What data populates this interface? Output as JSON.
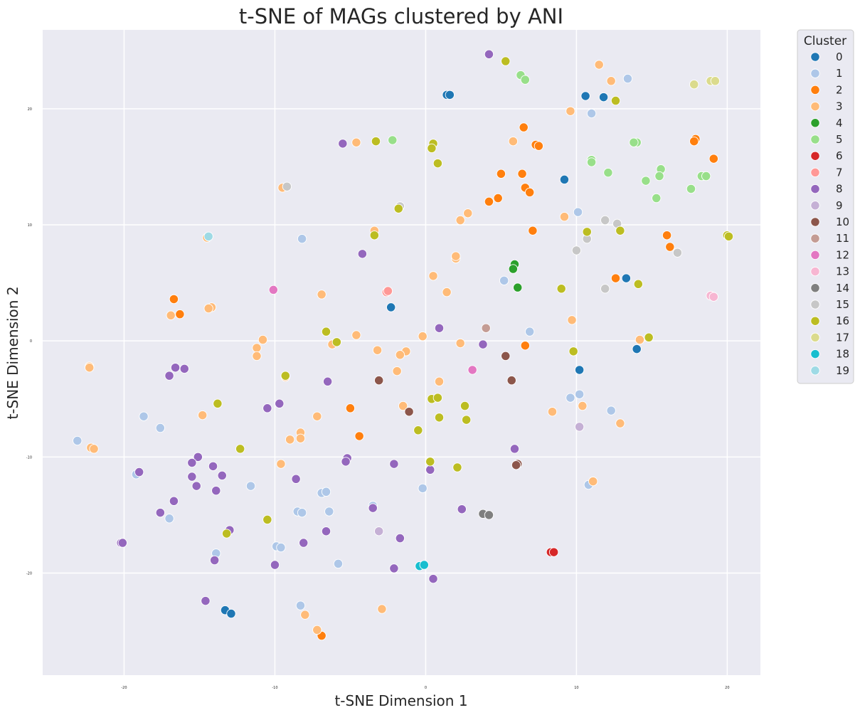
{
  "chart_data": {
    "type": "scatter",
    "title": "t-SNE of MAGs clustered by ANI",
    "xlabel": "t-SNE Dimension 1",
    "ylabel": "t-SNE Dimension 2",
    "xlim": [
      -25.4,
      22.2
    ],
    "ylim": [
      -28.8,
      26.8
    ],
    "xticks": [
      -20,
      -10,
      0,
      10,
      20
    ],
    "yticks": [
      -20,
      -10,
      0,
      10,
      20
    ],
    "grid": true,
    "legend_title": "Cluster",
    "legend_position": "outside-right",
    "series": [
      {
        "name": "0",
        "color": "#1f77b4",
        "points": [
          [
            1.4,
            21.2
          ],
          [
            1.6,
            21.2
          ],
          [
            10.6,
            21.1
          ],
          [
            11.8,
            21.0
          ],
          [
            9.2,
            13.9
          ],
          [
            13.3,
            5.4
          ],
          [
            14.0,
            -0.7
          ],
          [
            10.2,
            -2.5
          ],
          [
            -13.3,
            -23.2
          ],
          [
            -12.9,
            -23.5
          ],
          [
            -2.3,
            2.9
          ]
        ]
      },
      {
        "name": "1",
        "color": "#aec7e8",
        "points": [
          [
            13.4,
            22.6
          ],
          [
            11.0,
            19.6
          ],
          [
            10.1,
            11.1
          ],
          [
            -8.2,
            8.8
          ],
          [
            5.2,
            5.2
          ],
          [
            6.9,
            0.8
          ],
          [
            10.2,
            -4.6
          ],
          [
            9.6,
            -4.9
          ],
          [
            12.3,
            -6.0
          ],
          [
            -18.7,
            -6.5
          ],
          [
            -17.6,
            -7.5
          ],
          [
            -23.1,
            -8.6
          ],
          [
            -19.2,
            -11.5
          ],
          [
            -11.6,
            -12.5
          ],
          [
            -0.2,
            -12.7
          ],
          [
            10.8,
            -12.4
          ],
          [
            -6.9,
            -13.1
          ],
          [
            -6.6,
            -13.0
          ],
          [
            -8.5,
            -14.7
          ],
          [
            -8.2,
            -14.8
          ],
          [
            -6.4,
            -14.7
          ],
          [
            -3.5,
            -14.2
          ],
          [
            -17.0,
            -15.3
          ],
          [
            -9.9,
            -17.7
          ],
          [
            -9.6,
            -17.8
          ],
          [
            -13.9,
            -18.3
          ],
          [
            -5.8,
            -19.2
          ],
          [
            -8.3,
            -22.8
          ]
        ]
      },
      {
        "name": "2",
        "color": "#ff7f0e",
        "points": [
          [
            6.5,
            18.4
          ],
          [
            17.9,
            17.4
          ],
          [
            17.8,
            17.2
          ],
          [
            7.3,
            16.9
          ],
          [
            7.5,
            16.8
          ],
          [
            19.1,
            15.7
          ],
          [
            5.0,
            14.4
          ],
          [
            6.4,
            14.4
          ],
          [
            4.8,
            12.3
          ],
          [
            4.2,
            12.0
          ],
          [
            6.6,
            13.2
          ],
          [
            6.9,
            12.8
          ],
          [
            7.1,
            9.5
          ],
          [
            16.0,
            9.1
          ],
          [
            16.2,
            8.1
          ],
          [
            -16.7,
            3.6
          ],
          [
            -16.3,
            2.3
          ],
          [
            12.6,
            5.4
          ],
          [
            6.6,
            -0.4
          ],
          [
            -5.0,
            -5.8
          ],
          [
            -4.4,
            -8.2
          ],
          [
            -6.9,
            -25.4
          ]
        ]
      },
      {
        "name": "3",
        "color": "#ffbb78",
        "points": [
          [
            11.5,
            23.8
          ],
          [
            12.3,
            22.4
          ],
          [
            9.6,
            19.8
          ],
          [
            5.8,
            17.2
          ],
          [
            -4.6,
            17.1
          ],
          [
            2.8,
            11.0
          ],
          [
            2.3,
            10.4
          ],
          [
            9.2,
            10.7
          ],
          [
            -9.5,
            13.2
          ],
          [
            -3.4,
            9.5
          ],
          [
            -14.5,
            8.9
          ],
          [
            2.0,
            7.1
          ],
          [
            2.0,
            7.3
          ],
          [
            0.5,
            5.6
          ],
          [
            -14.2,
            2.9
          ],
          [
            -14.4,
            2.8
          ],
          [
            -16.9,
            2.2
          ],
          [
            1.4,
            4.2
          ],
          [
            -6.9,
            4.0
          ],
          [
            -2.5,
            4.3
          ],
          [
            9.7,
            1.8
          ],
          [
            14.2,
            0.1
          ],
          [
            -10.8,
            0.1
          ],
          [
            -4.6,
            0.5
          ],
          [
            -0.2,
            0.4
          ],
          [
            -6.2,
            -0.3
          ],
          [
            -11.2,
            -0.6
          ],
          [
            -11.2,
            -1.3
          ],
          [
            -3.2,
            -0.8
          ],
          [
            -1.3,
            -0.9
          ],
          [
            -1.7,
            -1.2
          ],
          [
            2.3,
            -0.2
          ],
          [
            -22.3,
            -2.2
          ],
          [
            -22.3,
            -2.3
          ],
          [
            -9.3,
            -3.1
          ],
          [
            -1.9,
            -2.6
          ],
          [
            0.9,
            -3.5
          ],
          [
            -1.5,
            -5.6
          ],
          [
            10.4,
            -5.6
          ],
          [
            8.4,
            -6.1
          ],
          [
            -14.8,
            -6.4
          ],
          [
            -7.2,
            -6.5
          ],
          [
            -8.3,
            -7.9
          ],
          [
            -8.3,
            -8.4
          ],
          [
            -9.0,
            -8.5
          ],
          [
            12.9,
            -7.1
          ],
          [
            -22.2,
            -9.2
          ],
          [
            -22.0,
            -9.3
          ],
          [
            -9.6,
            -10.6
          ],
          [
            11.1,
            -12.1
          ],
          [
            -2.9,
            -23.1
          ],
          [
            -8.0,
            -23.6
          ],
          [
            -7.2,
            -24.9
          ]
        ]
      },
      {
        "name": "4",
        "color": "#2ca02c",
        "points": [
          [
            5.9,
            6.6
          ],
          [
            5.8,
            6.2
          ],
          [
            6.1,
            4.6
          ]
        ]
      },
      {
        "name": "5",
        "color": "#98df8a",
        "points": [
          [
            6.3,
            22.9
          ],
          [
            6.6,
            22.5
          ],
          [
            -2.2,
            17.3
          ],
          [
            14.0,
            17.1
          ],
          [
            13.8,
            17.1
          ],
          [
            11.0,
            15.6
          ],
          [
            11.0,
            15.4
          ],
          [
            15.6,
            14.8
          ],
          [
            12.1,
            14.5
          ],
          [
            15.5,
            14.2
          ],
          [
            18.3,
            14.2
          ],
          [
            18.6,
            14.2
          ],
          [
            14.6,
            13.8
          ],
          [
            17.6,
            13.1
          ],
          [
            15.3,
            12.3
          ]
        ]
      },
      {
        "name": "6",
        "color": "#d62728",
        "points": [
          [
            8.3,
            -18.2
          ],
          [
            8.5,
            -18.2
          ]
        ]
      },
      {
        "name": "7",
        "color": "#ff9896",
        "points": [
          [
            -2.6,
            4.2
          ],
          [
            -2.5,
            4.3
          ]
        ]
      },
      {
        "name": "8",
        "color": "#9467bd",
        "points": [
          [
            4.2,
            24.7
          ],
          [
            -5.5,
            17.0
          ],
          [
            -4.2,
            7.5
          ],
          [
            0.9,
            1.1
          ],
          [
            -16.6,
            -2.3
          ],
          [
            -17.0,
            -3.0
          ],
          [
            -16.0,
            -2.4
          ],
          [
            -6.5,
            -3.5
          ],
          [
            3.8,
            -0.3
          ],
          [
            -10.5,
            -5.8
          ],
          [
            -9.7,
            -5.4
          ],
          [
            -15.1,
            -10.0
          ],
          [
            -15.5,
            -10.5
          ],
          [
            -14.1,
            -10.8
          ],
          [
            -5.2,
            -10.1
          ],
          [
            -5.3,
            -10.4
          ],
          [
            -2.1,
            -10.6
          ],
          [
            -19.0,
            -11.3
          ],
          [
            -15.5,
            -11.7
          ],
          [
            -13.5,
            -11.6
          ],
          [
            -8.6,
            -11.9
          ],
          [
            -15.2,
            -12.5
          ],
          [
            -13.9,
            -12.9
          ],
          [
            -16.7,
            -13.8
          ],
          [
            5.9,
            -9.3
          ],
          [
            0.3,
            -11.1
          ],
          [
            2.4,
            -14.5
          ],
          [
            -3.5,
            -14.4
          ],
          [
            -17.6,
            -14.8
          ],
          [
            -13.0,
            -16.3
          ],
          [
            -6.6,
            -16.4
          ],
          [
            -1.7,
            -17.0
          ],
          [
            -8.1,
            -17.4
          ],
          [
            -20.2,
            -17.4
          ],
          [
            -20.1,
            -17.4
          ],
          [
            -14.0,
            -18.9
          ],
          [
            -10.0,
            -19.3
          ],
          [
            -2.1,
            -19.6
          ],
          [
            0.5,
            -20.5
          ],
          [
            -14.6,
            -22.4
          ]
        ]
      },
      {
        "name": "9",
        "color": "#c5b0d5",
        "points": [
          [
            10.2,
            -7.4
          ],
          [
            -3.1,
            -16.4
          ]
        ]
      },
      {
        "name": "10",
        "color": "#8c564b",
        "points": [
          [
            5.3,
            -1.3
          ],
          [
            5.7,
            -3.4
          ],
          [
            -3.1,
            -3.4
          ],
          [
            -1.1,
            -6.1
          ],
          [
            6.1,
            -10.6
          ],
          [
            6.0,
            -10.7
          ]
        ]
      },
      {
        "name": "11",
        "color": "#c49c94",
        "points": [
          [
            4.0,
            1.1
          ]
        ]
      },
      {
        "name": "12",
        "color": "#e377c2",
        "points": [
          [
            -10.1,
            4.4
          ],
          [
            3.1,
            -2.5
          ]
        ]
      },
      {
        "name": "13",
        "color": "#f7b6d2",
        "points": [
          [
            18.9,
            3.9
          ],
          [
            19.1,
            3.8
          ]
        ]
      },
      {
        "name": "14",
        "color": "#7f7f7f",
        "points": [
          [
            3.8,
            -14.9
          ],
          [
            4.2,
            -15.0
          ]
        ]
      },
      {
        "name": "15",
        "color": "#c7c7c7",
        "points": [
          [
            -9.2,
            13.3
          ],
          [
            -1.7,
            11.6
          ],
          [
            11.9,
            10.4
          ],
          [
            12.7,
            10.1
          ],
          [
            10.7,
            8.8
          ],
          [
            10.0,
            7.8
          ],
          [
            16.7,
            7.6
          ],
          [
            11.9,
            4.5
          ]
        ]
      },
      {
        "name": "16",
        "color": "#bcbd22",
        "points": [
          [
            5.3,
            24.1
          ],
          [
            12.6,
            20.7
          ],
          [
            -3.3,
            17.2
          ],
          [
            0.5,
            17.0
          ],
          [
            0.4,
            16.6
          ],
          [
            0.8,
            15.3
          ],
          [
            -1.8,
            11.4
          ],
          [
            10.7,
            9.4
          ],
          [
            12.9,
            9.5
          ],
          [
            20.0,
            9.1
          ],
          [
            20.1,
            9.0
          ],
          [
            -3.4,
            9.1
          ],
          [
            9.0,
            4.5
          ],
          [
            14.1,
            4.9
          ],
          [
            -6.6,
            0.8
          ],
          [
            -5.9,
            -0.1
          ],
          [
            14.8,
            0.3
          ],
          [
            9.8,
            -0.9
          ],
          [
            -9.3,
            -3.0
          ],
          [
            0.4,
            -5.0
          ],
          [
            0.8,
            -4.9
          ],
          [
            -13.8,
            -5.4
          ],
          [
            2.6,
            -5.6
          ],
          [
            0.9,
            -6.6
          ],
          [
            2.7,
            -6.8
          ],
          [
            -0.5,
            -7.7
          ],
          [
            -12.3,
            -9.3
          ],
          [
            0.3,
            -10.4
          ],
          [
            2.1,
            -10.9
          ],
          [
            -10.5,
            -15.4
          ],
          [
            -13.2,
            -16.6
          ]
        ]
      },
      {
        "name": "17",
        "color": "#dbdb8d",
        "points": [
          [
            17.8,
            22.1
          ],
          [
            18.9,
            22.4
          ],
          [
            19.2,
            22.4
          ]
        ]
      },
      {
        "name": "18",
        "color": "#17becf",
        "points": [
          [
            -0.4,
            -19.4
          ],
          [
            -0.1,
            -19.3
          ]
        ]
      },
      {
        "name": "19",
        "color": "#9edae5",
        "points": [
          [
            -14.4,
            9.0
          ]
        ]
      }
    ]
  }
}
